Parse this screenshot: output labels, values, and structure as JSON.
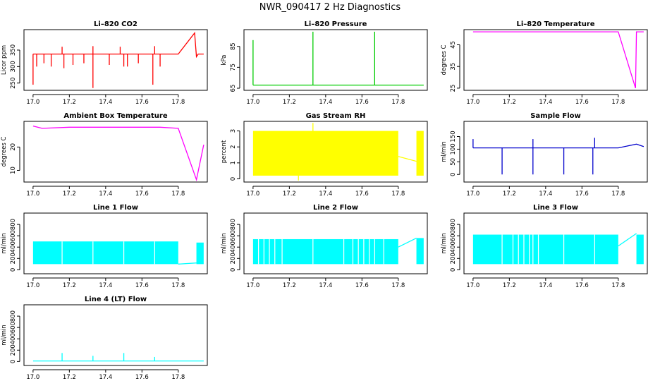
{
  "figure_title": "NWR_090417  2 Hz Diagnostics",
  "chart_data": [
    {
      "type": "line",
      "id": "co2",
      "title": "Li–820 CO2",
      "ylabel": "Licor ppm",
      "color": "#ff0000",
      "xlim": [
        16.95,
        17.96
      ],
      "ylim": [
        228,
        412
      ],
      "xticks": [
        17.0,
        17.2,
        17.4,
        17.6,
        17.8
      ],
      "yticks": [
        250,
        300,
        350
      ],
      "series": [
        {
          "x": [
            17.0,
            17.8,
            17.89,
            17.9,
            17.91,
            17.94
          ],
          "y": [
            338,
            338,
            402,
            330,
            338,
            338
          ]
        }
      ],
      "spikes": [
        {
          "x": 17.0,
          "y": 245
        },
        {
          "x": 17.02,
          "y": 300
        },
        {
          "x": 17.06,
          "y": 310
        },
        {
          "x": 17.1,
          "y": 300
        },
        {
          "x": 17.16,
          "y": 360
        },
        {
          "x": 17.17,
          "y": 295
        },
        {
          "x": 17.22,
          "y": 305
        },
        {
          "x": 17.28,
          "y": 310
        },
        {
          "x": 17.33,
          "y": 235
        },
        {
          "x": 17.33,
          "y": 362
        },
        {
          "x": 17.42,
          "y": 305
        },
        {
          "x": 17.48,
          "y": 360
        },
        {
          "x": 17.5,
          "y": 300
        },
        {
          "x": 17.52,
          "y": 300
        },
        {
          "x": 17.58,
          "y": 310
        },
        {
          "x": 17.66,
          "y": 245
        },
        {
          "x": 17.67,
          "y": 362
        },
        {
          "x": 17.7,
          "y": 300
        }
      ]
    },
    {
      "type": "line",
      "id": "pressure",
      "title": "Li–820 Pressure",
      "ylabel": "kPa",
      "color": "#00cc00",
      "xlim": [
        16.95,
        17.96
      ],
      "ylim": [
        64,
        93
      ],
      "xticks": [
        17.0,
        17.2,
        17.4,
        17.6,
        17.8
      ],
      "yticks": [
        65,
        75,
        85
      ],
      "series": [
        {
          "x": [
            17.0,
            17.94
          ],
          "y": [
            66.5,
            66.5
          ]
        }
      ],
      "spikes": [
        {
          "x": 17.0,
          "y": 88
        },
        {
          "x": 17.33,
          "y": 92
        },
        {
          "x": 17.67,
          "y": 92
        }
      ]
    },
    {
      "type": "line",
      "id": "temperature",
      "title": "Li–820 Temperature",
      "ylabel": "degrees C",
      "color": "#ff00ff",
      "xlim": [
        16.95,
        17.96
      ],
      "ylim": [
        24,
        52
      ],
      "xticks": [
        17.0,
        17.2,
        17.4,
        17.6,
        17.8
      ],
      "yticks": [
        25,
        35,
        45
      ],
      "series": [
        {
          "x": [
            17.0,
            17.8,
            17.895,
            17.9,
            17.905,
            17.94
          ],
          "y": [
            51,
            51,
            25,
            51,
            51,
            51
          ]
        }
      ],
      "spikes": []
    },
    {
      "type": "line",
      "id": "ambient",
      "title": "Ambient Box Temperature",
      "ylabel": "degrees C",
      "color": "#ff00ff",
      "xlim": [
        16.95,
        17.96
      ],
      "ylim": [
        5,
        31
      ],
      "xticks": [
        17.0,
        17.2,
        17.4,
        17.6,
        17.8
      ],
      "yticks": [
        10,
        20
      ],
      "series": [
        {
          "x": [
            17.0,
            17.05,
            17.2,
            17.5,
            17.7,
            17.8,
            17.9,
            17.94
          ],
          "y": [
            29,
            28,
            28.5,
            28.5,
            28.5,
            28,
            6,
            21
          ]
        }
      ],
      "spikes": []
    },
    {
      "type": "line",
      "id": "rh",
      "title": "Gas Stream RH",
      "ylabel": "percent",
      "color": "#ffff00",
      "xlim": [
        16.95,
        17.96
      ],
      "ylim": [
        -0.2,
        3.6
      ],
      "xticks": [
        17.0,
        17.2,
        17.4,
        17.6,
        17.8
      ],
      "yticks": [
        0,
        1,
        2,
        3
      ],
      "series": [
        {
          "x": [
            17.8,
            17.9
          ],
          "y": [
            1.4,
            1.1
          ]
        }
      ],
      "bands": [
        {
          "x0": 17.0,
          "x1": 17.8,
          "y0": 0.2,
          "y1": 3.0
        },
        {
          "x0": 17.9,
          "x1": 17.94,
          "y0": 0.2,
          "y1": 3.0
        }
      ],
      "spikes": [
        {
          "x": 17.33,
          "y": 3.5
        },
        {
          "x": 17.25,
          "y": -0.1
        }
      ]
    },
    {
      "type": "line",
      "id": "sample",
      "title": "Sample Flow",
      "ylabel": "ml/min",
      "color": "#0000cc",
      "xlim": [
        16.95,
        17.96
      ],
      "ylim": [
        -30,
        210
      ],
      "xticks": [
        17.0,
        17.2,
        17.4,
        17.6,
        17.8
      ],
      "yticks": [
        0,
        50,
        100,
        150
      ],
      "series": [
        {
          "x": [
            17.0,
            17.8,
            17.9,
            17.94
          ],
          "y": [
            105,
            105,
            120,
            110
          ]
        }
      ],
      "spikes": [
        {
          "x": 17.0,
          "y": 140
        },
        {
          "x": 17.16,
          "y": 0
        },
        {
          "x": 17.33,
          "y": 0
        },
        {
          "x": 17.33,
          "y": 140
        },
        {
          "x": 17.5,
          "y": 0
        },
        {
          "x": 17.66,
          "y": 0
        },
        {
          "x": 17.67,
          "y": 145
        }
      ]
    },
    {
      "type": "line",
      "id": "line1",
      "title": "Line 1 Flow",
      "ylabel": "ml/min",
      "color": "#00ffff",
      "xlim": [
        16.95,
        17.96
      ],
      "ylim": [
        -70,
        1000
      ],
      "xticks": [
        17.0,
        17.2,
        17.4,
        17.6,
        17.8
      ],
      "yticks": [
        0,
        200,
        400,
        600,
        800
      ],
      "series": [
        {
          "x": [
            17.8,
            17.9
          ],
          "y": [
            100,
            120
          ]
        }
      ],
      "bands": [
        {
          "x0": 17.0,
          "x1": 17.8,
          "y0": 100,
          "y1": 500
        },
        {
          "x0": 17.9,
          "x1": 17.94,
          "y0": 100,
          "y1": 480
        }
      ],
      "gaps": [
        17.16,
        17.33,
        17.5,
        17.67
      ],
      "spikes": []
    },
    {
      "type": "line",
      "id": "line2",
      "title": "Line 2 Flow",
      "ylabel": "ml/min",
      "color": "#00ffff",
      "xlim": [
        16.95,
        17.96
      ],
      "ylim": [
        -70,
        1000
      ],
      "xticks": [
        17.0,
        17.2,
        17.4,
        17.6,
        17.8
      ],
      "yticks": [
        0,
        200,
        400,
        600,
        800
      ],
      "series": [
        {
          "x": [
            17.8,
            17.9
          ],
          "y": [
            400,
            560
          ]
        }
      ],
      "bands": [
        {
          "x0": 17.0,
          "x1": 17.8,
          "y0": 100,
          "y1": 540
        },
        {
          "x0": 17.9,
          "x1": 17.94,
          "y0": 100,
          "y1": 560
        }
      ],
      "gaps": [
        17.03,
        17.06,
        17.09,
        17.12,
        17.16,
        17.33,
        17.5,
        17.55,
        17.58,
        17.61,
        17.64,
        17.67,
        17.72
      ],
      "spikes": []
    },
    {
      "type": "line",
      "id": "line3",
      "title": "Line 3 Flow",
      "ylabel": "ml/min",
      "color": "#00ffff",
      "xlim": [
        16.95,
        17.96
      ],
      "ylim": [
        -70,
        1000
      ],
      "xticks": [
        17.0,
        17.2,
        17.4,
        17.6,
        17.8
      ],
      "yticks": [
        0,
        200,
        400,
        600,
        800
      ],
      "series": [
        {
          "x": [
            17.8,
            17.9
          ],
          "y": [
            420,
            640
          ]
        }
      ],
      "bands": [
        {
          "x0": 17.0,
          "x1": 17.8,
          "y0": 100,
          "y1": 620
        },
        {
          "x0": 17.9,
          "x1": 17.94,
          "y0": 100,
          "y1": 620
        }
      ],
      "gaps": [
        17.16,
        17.22,
        17.25,
        17.28,
        17.31,
        17.33,
        17.36,
        17.5,
        17.67
      ],
      "spikes": []
    },
    {
      "type": "line",
      "id": "line4",
      "title": "Line 4 (LT) Flow",
      "ylabel": "ml/min",
      "color": "#00ffff",
      "xlim": [
        16.95,
        17.96
      ],
      "ylim": [
        -70,
        1000
      ],
      "xticks": [
        17.0,
        17.2,
        17.4,
        17.6,
        17.8
      ],
      "yticks": [
        0,
        200,
        400,
        600,
        800
      ],
      "series": [
        {
          "x": [
            17.0,
            17.94
          ],
          "y": [
            10,
            10
          ]
        }
      ],
      "spikes": [
        {
          "x": 17.16,
          "y": 150
        },
        {
          "x": 17.33,
          "y": 100
        },
        {
          "x": 17.5,
          "y": 150
        },
        {
          "x": 17.67,
          "y": 80
        }
      ]
    }
  ]
}
